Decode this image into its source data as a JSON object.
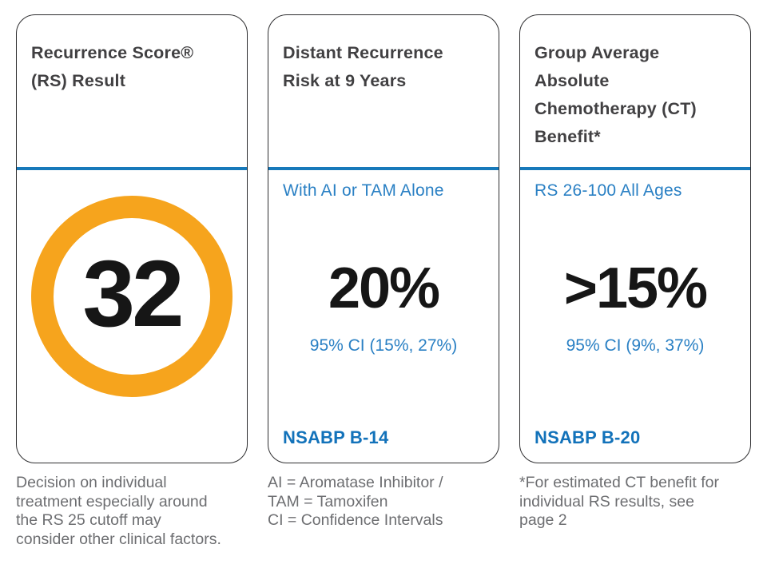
{
  "report": {
    "colors": {
      "divider_blue": "#1779BA",
      "light_text_blue": "#2A80C4",
      "study_blue": "#1272BA",
      "ring_orange": "#F6A41D",
      "heading_gray": "#414042",
      "footnote_gray": "#6D6E71",
      "value_black": "#161616",
      "card_border": "#2e2e30"
    },
    "cards": [
      {
        "title": "Recurrence Score®\n(RS) Result",
        "score": "32",
        "footnote": "Decision on individual\ntreatment especially around\nthe RS 25 cutoff may\nconsider other clinical factors."
      },
      {
        "title": "Distant Recurrence\nRisk at 9 Years",
        "subtitle": "With AI or TAM Alone",
        "value": "20%",
        "ci": "95% CI (15%, 27%)",
        "study": "NSABP B-14",
        "footnote": "AI = Aromatase Inhibitor /\nTAM = Tamoxifen\nCI = Confidence Intervals"
      },
      {
        "title": "Group Average\nAbsolute\nChemotherapy (CT)\nBenefit*",
        "subtitle": "RS 26-100 All Ages",
        "value": ">15%",
        "ci": "95% CI (9%, 37%)",
        "study": "NSABP B-20",
        "footnote": "*For estimated CT benefit for\nindividual RS results, see\npage 2"
      }
    ]
  }
}
